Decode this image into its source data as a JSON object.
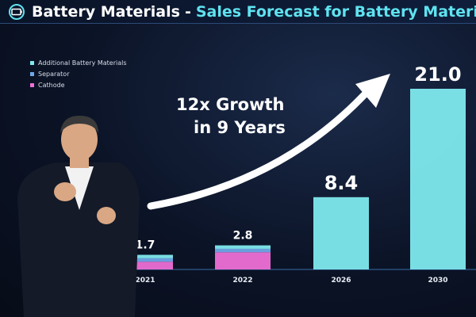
{
  "header": {
    "title": "Battery Materials",
    "separator": "-",
    "subtitle": "Sales Forecast for Battery Materials B"
  },
  "annotation": {
    "line1": "12x Growth",
    "line2": "in 9 Years"
  },
  "colors": {
    "additional": "#7fe9ee",
    "separator": "#6fa8e8",
    "cathode": "#ee6fd6",
    "title_accent": "#5fe3f0"
  },
  "chart_data": {
    "type": "bar",
    "stacked": true,
    "categories": [
      "2021",
      "2022",
      "2026",
      "2030"
    ],
    "series": [
      {
        "name": "Cathode",
        "values": [
          0.9,
          2.0,
          0,
          0
        ]
      },
      {
        "name": "Separator",
        "values": [
          0.4,
          0.4,
          0,
          0
        ]
      },
      {
        "name": "Additional Battery Materials",
        "values": [
          0.4,
          0.4,
          8.4,
          21.0
        ]
      }
    ],
    "totals": [
      1.7,
      2.8,
      8.4,
      21.0
    ],
    "total_labels": [
      "1.7",
      "2.8",
      "8.4",
      "21.0"
    ],
    "legend": [
      "Additional Battery Materials",
      "Separator",
      "Cathode"
    ],
    "legend_position": "top-left",
    "ylim": [
      0,
      21.0
    ],
    "title": "Sales Forecast for Battery Materials"
  }
}
